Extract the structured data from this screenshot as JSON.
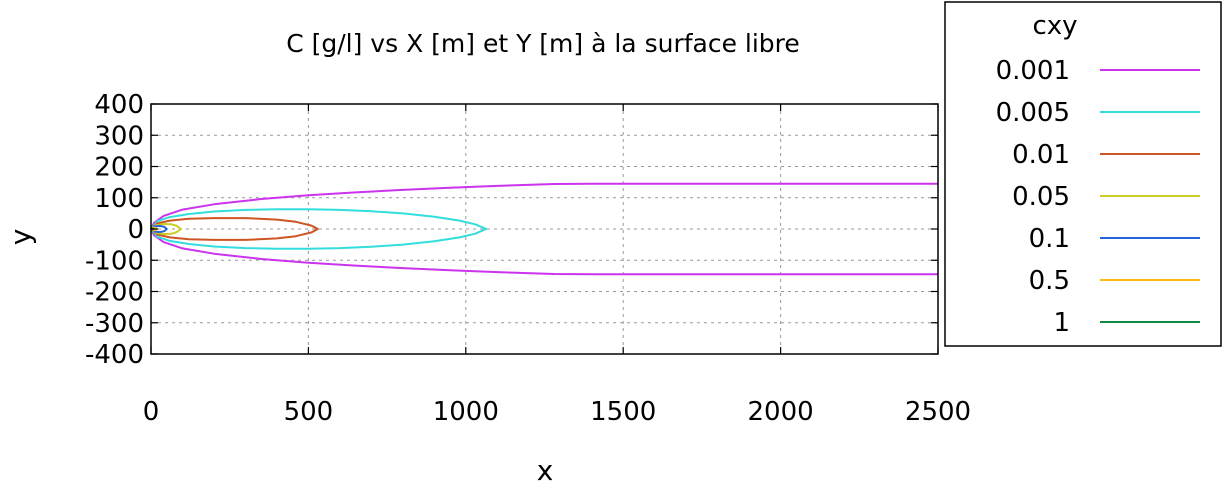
{
  "chart_data": {
    "type": "line",
    "title": "C [g/l] vs X [m] et Y [m] à la surface libre",
    "xlabel": "x",
    "ylabel": "y",
    "xlim": [
      0,
      2500
    ],
    "ylim": [
      -400,
      400
    ],
    "x_ticks": [
      0,
      500,
      1000,
      1500,
      2000,
      2500
    ],
    "y_ticks": [
      400,
      300,
      200,
      100,
      0,
      -100,
      -200,
      -300,
      -400
    ],
    "grid": true,
    "legend": {
      "title": "cxy",
      "placement": "right"
    },
    "series": [
      {
        "name": "0.001",
        "color": "#cc33ee",
        "x": [
          2500,
          2200,
          1900,
          1600,
          1400,
          1280,
          1100,
          950,
          800,
          650,
          500,
          350,
          200,
          100,
          40,
          10,
          0,
          10,
          40,
          100,
          200,
          350,
          500,
          650,
          800,
          950,
          1100,
          1280,
          1400,
          1600,
          1900,
          2200,
          2500
        ],
        "y": [
          145,
          145,
          145,
          145,
          145,
          144,
          138,
          132,
          125,
          117,
          108,
          96,
          79,
          62,
          42,
          20,
          0,
          -20,
          -42,
          -62,
          -79,
          -96,
          -108,
          -117,
          -125,
          -132,
          -138,
          -144,
          -145,
          -145,
          -145,
          -145,
          -145
        ]
      },
      {
        "name": "0.005",
        "color": "#33dddd",
        "x": [
          0,
          20,
          60,
          120,
          200,
          300,
          400,
          500,
          600,
          700,
          800,
          900,
          980,
          1030,
          1065,
          1030,
          980,
          900,
          800,
          700,
          600,
          500,
          400,
          300,
          200,
          120,
          60,
          20,
          0
        ],
        "y": [
          0,
          25,
          38,
          48,
          56,
          61,
          63,
          63,
          61,
          57,
          50,
          39,
          27,
          15,
          0,
          -15,
          -27,
          -39,
          -50,
          -57,
          -61,
          -63,
          -63,
          -61,
          -56,
          -48,
          -38,
          -25,
          0
        ]
      },
      {
        "name": "0.01",
        "color": "#cc5522",
        "x": [
          0,
          20,
          60,
          120,
          200,
          300,
          400,
          460,
          510,
          530,
          510,
          460,
          400,
          300,
          200,
          120,
          60,
          20,
          0
        ],
        "y": [
          0,
          18,
          27,
          33,
          35,
          35,
          30,
          23,
          11,
          0,
          -11,
          -23,
          -30,
          -35,
          -35,
          -33,
          -27,
          -18,
          0
        ]
      },
      {
        "name": "0.05",
        "color": "#cccc22",
        "x": [
          0,
          15,
          40,
          65,
          80,
          95,
          80,
          65,
          40,
          15,
          0
        ],
        "y": [
          0,
          12,
          16,
          15,
          11,
          0,
          -11,
          -15,
          -16,
          -12,
          0
        ]
      },
      {
        "name": "0.1",
        "color": "#2266dd",
        "x": [
          0,
          10,
          28,
          42,
          50,
          42,
          28,
          10,
          0
        ],
        "y": [
          0,
          8,
          10,
          7,
          0,
          -7,
          -10,
          -8,
          0
        ]
      },
      {
        "name": "0.5",
        "color": "#ffbb11",
        "x": [
          0,
          5,
          12,
          18,
          12,
          5,
          0
        ],
        "y": [
          0,
          4,
          4,
          0,
          -4,
          -4,
          0
        ]
      },
      {
        "name": "1",
        "color": "#118844",
        "x": [
          0,
          4,
          8,
          4,
          0
        ],
        "y": [
          0,
          2,
          0,
          -2,
          0
        ]
      }
    ]
  }
}
